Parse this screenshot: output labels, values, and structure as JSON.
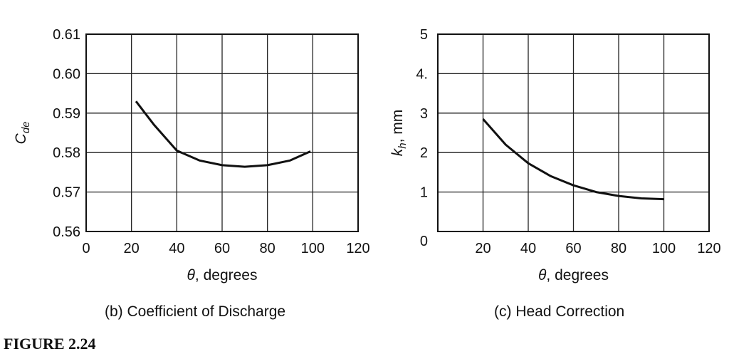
{
  "figure_label": "FIGURE 2.24",
  "chart_data": [
    {
      "type": "line",
      "caption": "(b) Coefficient of Discharge",
      "xlabel_symbol": "θ",
      "xlabel_rest": ", degrees",
      "ylabel_main": "C",
      "ylabel_sub": "de",
      "xlim": [
        0,
        120
      ],
      "ylim": [
        0.56,
        0.61
      ],
      "xticks": [
        "0",
        "20",
        "40",
        "60",
        "80",
        "100",
        "120"
      ],
      "yticks": [
        "0.56",
        "0.57",
        "0.58",
        "0.59",
        "0.60",
        "0.61"
      ],
      "grid": true,
      "color": "#111111",
      "x": [
        22,
        30,
        40,
        50,
        60,
        70,
        80,
        90,
        99
      ],
      "y": [
        0.593,
        0.587,
        0.5805,
        0.578,
        0.5768,
        0.5764,
        0.5768,
        0.578,
        0.5803
      ]
    },
    {
      "type": "line",
      "caption": "(c) Head Correction",
      "xlabel_symbol": "θ",
      "xlabel_rest": ", degrees",
      "ylabel_main": "k",
      "ylabel_sub": "h",
      "ylabel_unit": ", mm",
      "xlim": [
        0,
        120
      ],
      "ylim": [
        0,
        5
      ],
      "xticks": [
        "",
        "20",
        "40",
        "60",
        "80",
        "100",
        "120"
      ],
      "yticks": [
        "0",
        "1",
        "2",
        "3",
        "4.",
        "5"
      ],
      "grid": true,
      "color": "#111111",
      "x": [
        20,
        30,
        40,
        50,
        60,
        70,
        80,
        90,
        100
      ],
      "y": [
        2.85,
        2.2,
        1.73,
        1.4,
        1.17,
        1.0,
        0.9,
        0.84,
        0.82
      ]
    }
  ]
}
